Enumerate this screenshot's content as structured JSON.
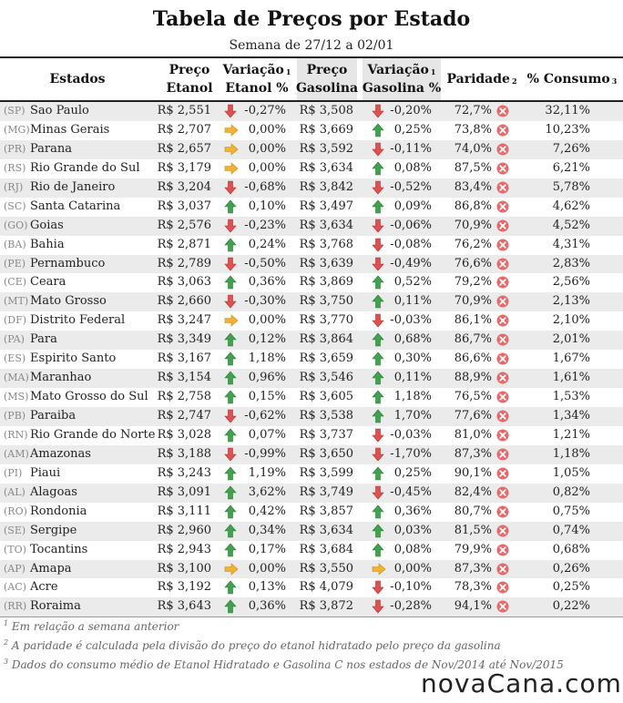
{
  "title": "Tabela de Preços por Estado",
  "subtitle": "Semana de 27/12 a 02/01",
  "headers": {
    "estados": "Estados",
    "preco_etanol_1": "Preço",
    "preco_etanol_2": "Etanol",
    "var_etanol_1": "Variação",
    "var_etanol_2": "Etanol %",
    "preco_gasolina_1": "Preço",
    "preco_gasolina_2": "Gasolina",
    "var_gasolina_1": "Variação",
    "var_gasolina_2": "Gasolina %",
    "paridade": "Paridade",
    "consumo": "% Consumo",
    "sup1": "1",
    "sup2": "2",
    "sup3": "3"
  },
  "colors": {
    "up": "#3fa34d",
    "down": "#e05050",
    "equal": "#f2b233",
    "x_icon": "#e46b6b",
    "row_stripe": "#ebebeb",
    "header_highlight": "#e6e6e6"
  },
  "icons": {
    "up": "arrow-up-icon",
    "down": "arrow-down-icon",
    "equal": "arrow-right-icon",
    "parity": "x-circle-icon"
  },
  "rows": [
    {
      "abbr": "(SP)",
      "name": "Sao Paulo",
      "etanol": "R$ 2,551",
      "etanol_trend": "down",
      "etanol_var": "-0,27%",
      "gasolina": "R$ 3,508",
      "gasolina_trend": "down",
      "gasolina_var": "-0,20%",
      "paridade": "72,7%",
      "consumo": "32,11%"
    },
    {
      "abbr": "(MG)",
      "name": "Minas Gerais",
      "etanol": "R$ 2,707",
      "etanol_trend": "equal",
      "etanol_var": "0,00%",
      "gasolina": "R$ 3,669",
      "gasolina_trend": "up",
      "gasolina_var": "0,25%",
      "paridade": "73,8%",
      "consumo": "10,23%"
    },
    {
      "abbr": "(PR)",
      "name": "Parana",
      "etanol": "R$ 2,657",
      "etanol_trend": "equal",
      "etanol_var": "0,00%",
      "gasolina": "R$ 3,592",
      "gasolina_trend": "down",
      "gasolina_var": "-0,11%",
      "paridade": "74,0%",
      "consumo": "7,26%"
    },
    {
      "abbr": "(RS)",
      "name": "Rio Grande do Sul",
      "etanol": "R$ 3,179",
      "etanol_trend": "equal",
      "etanol_var": "0,00%",
      "gasolina": "R$ 3,634",
      "gasolina_trend": "up",
      "gasolina_var": "0,08%",
      "paridade": "87,5%",
      "consumo": "6,21%"
    },
    {
      "abbr": "(RJ)",
      "name": "Rio de Janeiro",
      "etanol": "R$ 3,204",
      "etanol_trend": "down",
      "etanol_var": "-0,68%",
      "gasolina": "R$ 3,842",
      "gasolina_trend": "down",
      "gasolina_var": "-0,52%",
      "paridade": "83,4%",
      "consumo": "5,78%"
    },
    {
      "abbr": "(SC)",
      "name": "Santa Catarina",
      "etanol": "R$ 3,037",
      "etanol_trend": "up",
      "etanol_var": "0,10%",
      "gasolina": "R$ 3,497",
      "gasolina_trend": "up",
      "gasolina_var": "0,09%",
      "paridade": "86,8%",
      "consumo": "4,62%"
    },
    {
      "abbr": "(GO)",
      "name": "Goias",
      "etanol": "R$ 2,576",
      "etanol_trend": "down",
      "etanol_var": "-0,23%",
      "gasolina": "R$ 3,634",
      "gasolina_trend": "down",
      "gasolina_var": "-0,06%",
      "paridade": "70,9%",
      "consumo": "4,52%"
    },
    {
      "abbr": "(BA)",
      "name": "Bahia",
      "etanol": "R$ 2,871",
      "etanol_trend": "up",
      "etanol_var": "0,24%",
      "gasolina": "R$ 3,768",
      "gasolina_trend": "down",
      "gasolina_var": "-0,08%",
      "paridade": "76,2%",
      "consumo": "4,31%"
    },
    {
      "abbr": "(PE)",
      "name": "Pernambuco",
      "etanol": "R$ 2,789",
      "etanol_trend": "down",
      "etanol_var": "-0,50%",
      "gasolina": "R$ 3,639",
      "gasolina_trend": "down",
      "gasolina_var": "-0,49%",
      "paridade": "76,6%",
      "consumo": "2,83%"
    },
    {
      "abbr": "(CE)",
      "name": "Ceara",
      "etanol": "R$ 3,063",
      "etanol_trend": "up",
      "etanol_var": "0,36%",
      "gasolina": "R$ 3,869",
      "gasolina_trend": "up",
      "gasolina_var": "0,52%",
      "paridade": "79,2%",
      "consumo": "2,56%"
    },
    {
      "abbr": "(MT)",
      "name": "Mato Grosso",
      "etanol": "R$ 2,660",
      "etanol_trend": "down",
      "etanol_var": "-0,30%",
      "gasolina": "R$ 3,750",
      "gasolina_trend": "up",
      "gasolina_var": "0,11%",
      "paridade": "70,9%",
      "consumo": "2,13%"
    },
    {
      "abbr": "(DF)",
      "name": "Distrito Federal",
      "etanol": "R$ 3,247",
      "etanol_trend": "equal",
      "etanol_var": "0,00%",
      "gasolina": "R$ 3,770",
      "gasolina_trend": "down",
      "gasolina_var": "-0,03%",
      "paridade": "86,1%",
      "consumo": "2,10%"
    },
    {
      "abbr": "(PA)",
      "name": "Para",
      "etanol": "R$ 3,349",
      "etanol_trend": "up",
      "etanol_var": "0,12%",
      "gasolina": "R$ 3,864",
      "gasolina_trend": "up",
      "gasolina_var": "0,68%",
      "paridade": "86,7%",
      "consumo": "2,01%"
    },
    {
      "abbr": "(ES)",
      "name": "Espirito Santo",
      "etanol": "R$ 3,167",
      "etanol_trend": "up",
      "etanol_var": "1,18%",
      "gasolina": "R$ 3,659",
      "gasolina_trend": "up",
      "gasolina_var": "0,30%",
      "paridade": "86,6%",
      "consumo": "1,67%"
    },
    {
      "abbr": "(MA)",
      "name": "Maranhao",
      "etanol": "R$ 3,154",
      "etanol_trend": "up",
      "etanol_var": "0,96%",
      "gasolina": "R$ 3,546",
      "gasolina_trend": "up",
      "gasolina_var": "0,11%",
      "paridade": "88,9%",
      "consumo": "1,61%"
    },
    {
      "abbr": "(MS)",
      "name": "Mato Grosso do Sul",
      "etanol": "R$ 2,758",
      "etanol_trend": "up",
      "etanol_var": "0,15%",
      "gasolina": "R$ 3,605",
      "gasolina_trend": "up",
      "gasolina_var": "1,18%",
      "paridade": "76,5%",
      "consumo": "1,53%"
    },
    {
      "abbr": "(PB)",
      "name": "Paraiba",
      "etanol": "R$ 2,747",
      "etanol_trend": "down",
      "etanol_var": "-0,62%",
      "gasolina": "R$ 3,538",
      "gasolina_trend": "up",
      "gasolina_var": "1,70%",
      "paridade": "77,6%",
      "consumo": "1,34%"
    },
    {
      "abbr": "(RN)",
      "name": "Rio Grande do Norte",
      "etanol": "R$ 3,028",
      "etanol_trend": "up",
      "etanol_var": "0,07%",
      "gasolina": "R$ 3,737",
      "gasolina_trend": "down",
      "gasolina_var": "-0,03%",
      "paridade": "81,0%",
      "consumo": "1,21%"
    },
    {
      "abbr": "(AM)",
      "name": "Amazonas",
      "etanol": "R$ 3,188",
      "etanol_trend": "down",
      "etanol_var": "-0,99%",
      "gasolina": "R$ 3,650",
      "gasolina_trend": "down",
      "gasolina_var": "-1,70%",
      "paridade": "87,3%",
      "consumo": "1,18%"
    },
    {
      "abbr": "(PI)",
      "name": "Piaui",
      "etanol": "R$ 3,243",
      "etanol_trend": "up",
      "etanol_var": "1,19%",
      "gasolina": "R$ 3,599",
      "gasolina_trend": "up",
      "gasolina_var": "0,25%",
      "paridade": "90,1%",
      "consumo": "1,05%"
    },
    {
      "abbr": "(AL)",
      "name": "Alagoas",
      "etanol": "R$ 3,091",
      "etanol_trend": "up",
      "etanol_var": "3,62%",
      "gasolina": "R$ 3,749",
      "gasolina_trend": "down",
      "gasolina_var": "-0,45%",
      "paridade": "82,4%",
      "consumo": "0,82%"
    },
    {
      "abbr": "(RO)",
      "name": "Rondonia",
      "etanol": "R$ 3,111",
      "etanol_trend": "up",
      "etanol_var": "0,42%",
      "gasolina": "R$ 3,857",
      "gasolina_trend": "up",
      "gasolina_var": "0,36%",
      "paridade": "80,7%",
      "consumo": "0,75%"
    },
    {
      "abbr": "(SE)",
      "name": "Sergipe",
      "etanol": "R$ 2,960",
      "etanol_trend": "up",
      "etanol_var": "0,34%",
      "gasolina": "R$ 3,634",
      "gasolina_trend": "up",
      "gasolina_var": "0,03%",
      "paridade": "81,5%",
      "consumo": "0,74%"
    },
    {
      "abbr": "(TO)",
      "name": "Tocantins",
      "etanol": "R$ 2,943",
      "etanol_trend": "up",
      "etanol_var": "0,17%",
      "gasolina": "R$ 3,684",
      "gasolina_trend": "up",
      "gasolina_var": "0,08%",
      "paridade": "79,9%",
      "consumo": "0,68%"
    },
    {
      "abbr": "(AP)",
      "name": "Amapa",
      "etanol": "R$ 3,100",
      "etanol_trend": "equal",
      "etanol_var": "0,00%",
      "gasolina": "R$ 3,550",
      "gasolina_trend": "equal",
      "gasolina_var": "0,00%",
      "paridade": "87,3%",
      "consumo": "0,26%"
    },
    {
      "abbr": "(AC)",
      "name": "Acre",
      "etanol": "R$ 3,192",
      "etanol_trend": "up",
      "etanol_var": "0,13%",
      "gasolina": "R$ 4,079",
      "gasolina_trend": "down",
      "gasolina_var": "-0,10%",
      "paridade": "78,3%",
      "consumo": "0,25%"
    },
    {
      "abbr": "(RR)",
      "name": "Roraima",
      "etanol": "R$ 3,643",
      "etanol_trend": "up",
      "etanol_var": "0,36%",
      "gasolina": "R$ 3,872",
      "gasolina_trend": "down",
      "gasolina_var": "-0,28%",
      "paridade": "94,1%",
      "consumo": "0,22%"
    }
  ],
  "footnotes": [
    {
      "num": "1",
      "text": " Em relação a semana anterior"
    },
    {
      "num": "2",
      "text": " A paridade é calculada pela divisão do preço do etanol hidratado pelo preço da gasolina"
    },
    {
      "num": "3",
      "text": " Dados do consumo médio de Etanol Hidratado e Gasolina C nos estados de Nov/2014 até Nov/2015"
    }
  ],
  "logo": "novaCana.com"
}
